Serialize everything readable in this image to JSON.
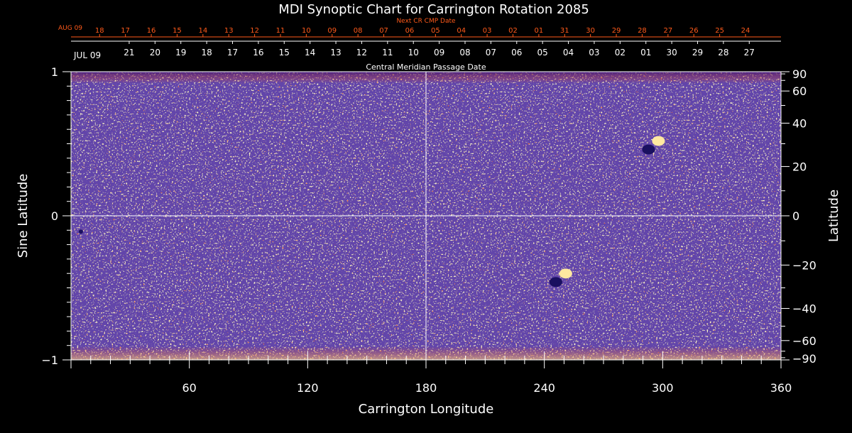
{
  "chart_data": {
    "type": "heatmap",
    "title": "MDI Synoptic Chart for Carrington Rotation 2085",
    "xlabel": "Carrington Longitude",
    "ylabel_left": "Sine Latitude",
    "ylabel_right": "Latitude",
    "xlim": [
      0,
      360
    ],
    "ylim": [
      -1,
      1
    ],
    "x_ticks": [
      60,
      120,
      180,
      240,
      300,
      360
    ],
    "y_ticks_left": [
      {
        "value": 1,
        "label": "1"
      },
      {
        "value": 0,
        "label": "0"
      },
      {
        "value": -1,
        "label": "−1"
      }
    ],
    "y_ticks_right": [
      {
        "deg": 90,
        "label": "90"
      },
      {
        "deg": 60,
        "label": "60"
      },
      {
        "deg": 40,
        "label": "40"
      },
      {
        "deg": 20,
        "label": "20"
      },
      {
        "deg": 0,
        "label": "0"
      },
      {
        "deg": -20,
        "label": "−20"
      },
      {
        "deg": -40,
        "label": "−40"
      },
      {
        "deg": -60,
        "label": "−60"
      },
      {
        "deg": -90,
        "label": "−90"
      }
    ],
    "next_cr_axis": {
      "title": "Next CR CMP Date",
      "month_label": "AUG 09",
      "ticks": [
        {
          "lon": 14.5,
          "label": "18"
        },
        {
          "lon": 27.6,
          "label": "17"
        },
        {
          "lon": 40.7,
          "label": "16"
        },
        {
          "lon": 53.8,
          "label": "15"
        },
        {
          "lon": 66.9,
          "label": "14"
        },
        {
          "lon": 80.0,
          "label": "13"
        },
        {
          "lon": 93.1,
          "label": "12"
        },
        {
          "lon": 106.2,
          "label": "11"
        },
        {
          "lon": 119.3,
          "label": "10"
        },
        {
          "lon": 132.4,
          "label": "09"
        },
        {
          "lon": 145.5,
          "label": "08"
        },
        {
          "lon": 158.6,
          "label": "07"
        },
        {
          "lon": 171.7,
          "label": "06"
        },
        {
          "lon": 184.8,
          "label": "05"
        },
        {
          "lon": 197.9,
          "label": "04"
        },
        {
          "lon": 211.0,
          "label": "03"
        },
        {
          "lon": 224.1,
          "label": "02"
        },
        {
          "lon": 237.2,
          "label": "01"
        },
        {
          "lon": 250.3,
          "label": "31"
        },
        {
          "lon": 263.4,
          "label": "30"
        },
        {
          "lon": 276.5,
          "label": "29"
        },
        {
          "lon": 289.6,
          "label": "28"
        },
        {
          "lon": 302.7,
          "label": "27"
        },
        {
          "lon": 315.8,
          "label": "26"
        },
        {
          "lon": 328.9,
          "label": "25"
        },
        {
          "lon": 342.0,
          "label": "24"
        }
      ]
    },
    "cmp_axis": {
      "title": "Central Meridian Passage Date",
      "month_label": "JUL 09",
      "ticks": [
        {
          "lon": 29.5,
          "label": "21"
        },
        {
          "lon": 42.6,
          "label": "20"
        },
        {
          "lon": 55.7,
          "label": "19"
        },
        {
          "lon": 68.8,
          "label": "18"
        },
        {
          "lon": 81.9,
          "label": "17"
        },
        {
          "lon": 95.0,
          "label": "16"
        },
        {
          "lon": 108.1,
          "label": "15"
        },
        {
          "lon": 121.2,
          "label": "14"
        },
        {
          "lon": 134.3,
          "label": "13"
        },
        {
          "lon": 147.4,
          "label": "12"
        },
        {
          "lon": 160.5,
          "label": "11"
        },
        {
          "lon": 173.6,
          "label": "10"
        },
        {
          "lon": 186.7,
          "label": "09"
        },
        {
          "lon": 199.8,
          "label": "08"
        },
        {
          "lon": 212.9,
          "label": "07"
        },
        {
          "lon": 226.0,
          "label": "06"
        },
        {
          "lon": 239.1,
          "label": "05"
        },
        {
          "lon": 252.2,
          "label": "04"
        },
        {
          "lon": 265.3,
          "label": "03"
        },
        {
          "lon": 278.4,
          "label": "02"
        },
        {
          "lon": 291.5,
          "label": "01"
        },
        {
          "lon": 304.6,
          "label": "30"
        },
        {
          "lon": 317.7,
          "label": "29"
        },
        {
          "lon": 330.8,
          "label": "28"
        },
        {
          "lon": 343.9,
          "label": "27"
        }
      ]
    },
    "gridlines": {
      "x": [
        180
      ],
      "y": [
        0
      ]
    },
    "colors": {
      "background": "#ff4a08",
      "positive_flux": "#ffe8a0",
      "negative_flux": "#1a1060",
      "grid": "#ffffff",
      "date_axis": "#ff5a1a"
    },
    "features": [
      {
        "type": "active_region",
        "lon": 248,
        "sinlat": -0.45,
        "polarity": "bipolar"
      },
      {
        "type": "active_region",
        "lon": 295,
        "sinlat": 0.47,
        "polarity": "bipolar"
      },
      {
        "type": "spot",
        "lon": 5,
        "sinlat": -0.11,
        "polarity": "negative"
      }
    ]
  }
}
